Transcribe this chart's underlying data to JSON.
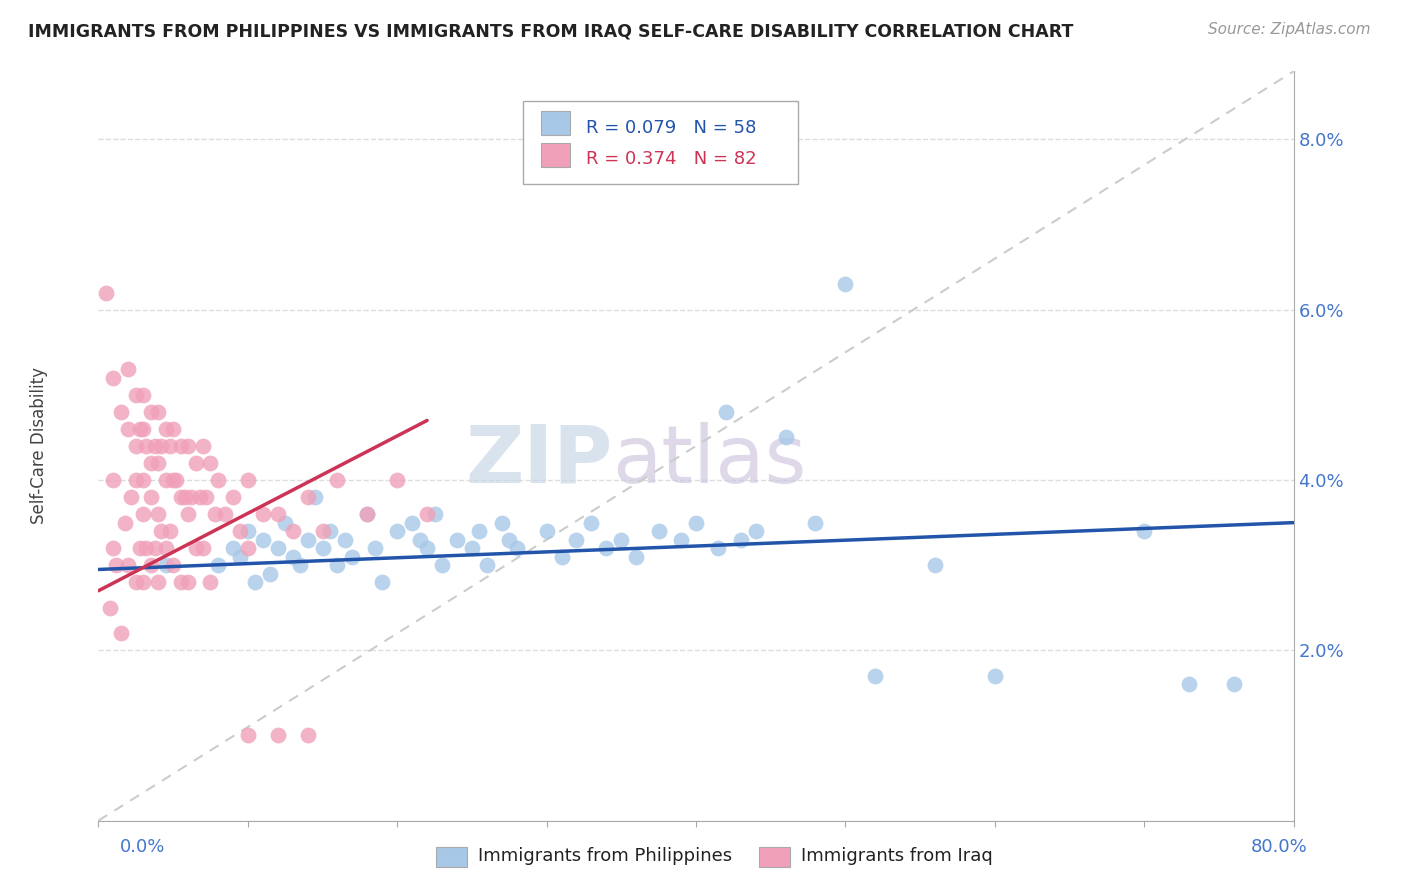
{
  "title": "IMMIGRANTS FROM PHILIPPINES VS IMMIGRANTS FROM IRAQ SELF-CARE DISABILITY CORRELATION CHART",
  "source": "Source: ZipAtlas.com",
  "ylabel": "Self-Care Disability",
  "xlim": [
    0.0,
    0.8
  ],
  "ylim": [
    0.0,
    0.088
  ],
  "color_philippines": "#a8c8e8",
  "color_iraq": "#f0a0b8",
  "line_color_philippines": "#2255aa",
  "line_color_iraq": "#cc3355",
  "watermark_zip": "ZIP",
  "watermark_atlas": "atlas",
  "phil_x": [
    0.045,
    0.08,
    0.09,
    0.095,
    0.1,
    0.105,
    0.11,
    0.115,
    0.12,
    0.125,
    0.13,
    0.135,
    0.14,
    0.145,
    0.15,
    0.155,
    0.16,
    0.165,
    0.17,
    0.18,
    0.185,
    0.19,
    0.2,
    0.21,
    0.215,
    0.22,
    0.225,
    0.23,
    0.24,
    0.25,
    0.255,
    0.26,
    0.27,
    0.275,
    0.28,
    0.3,
    0.31,
    0.32,
    0.33,
    0.34,
    0.35,
    0.36,
    0.375,
    0.39,
    0.4,
    0.415,
    0.42,
    0.43,
    0.44,
    0.46,
    0.48,
    0.5,
    0.52,
    0.56,
    0.6,
    0.7,
    0.73,
    0.76
  ],
  "phil_y": [
    0.03,
    0.03,
    0.032,
    0.031,
    0.034,
    0.028,
    0.033,
    0.029,
    0.032,
    0.035,
    0.031,
    0.03,
    0.033,
    0.038,
    0.032,
    0.034,
    0.03,
    0.033,
    0.031,
    0.036,
    0.032,
    0.028,
    0.034,
    0.035,
    0.033,
    0.032,
    0.036,
    0.03,
    0.033,
    0.032,
    0.034,
    0.03,
    0.035,
    0.033,
    0.032,
    0.034,
    0.031,
    0.033,
    0.035,
    0.032,
    0.033,
    0.031,
    0.034,
    0.033,
    0.035,
    0.032,
    0.048,
    0.033,
    0.034,
    0.045,
    0.035,
    0.063,
    0.017,
    0.03,
    0.017,
    0.034,
    0.016,
    0.016
  ],
  "iraq_x": [
    0.005,
    0.008,
    0.01,
    0.01,
    0.01,
    0.012,
    0.015,
    0.015,
    0.018,
    0.02,
    0.02,
    0.02,
    0.022,
    0.025,
    0.025,
    0.025,
    0.025,
    0.028,
    0.028,
    0.03,
    0.03,
    0.03,
    0.03,
    0.03,
    0.032,
    0.032,
    0.035,
    0.035,
    0.035,
    0.035,
    0.038,
    0.038,
    0.04,
    0.04,
    0.04,
    0.04,
    0.042,
    0.042,
    0.045,
    0.045,
    0.045,
    0.048,
    0.048,
    0.05,
    0.05,
    0.05,
    0.052,
    0.055,
    0.055,
    0.055,
    0.058,
    0.06,
    0.06,
    0.06,
    0.062,
    0.065,
    0.065,
    0.068,
    0.07,
    0.07,
    0.072,
    0.075,
    0.075,
    0.078,
    0.08,
    0.085,
    0.09,
    0.095,
    0.1,
    0.1,
    0.11,
    0.12,
    0.13,
    0.14,
    0.15,
    0.16,
    0.18,
    0.2,
    0.22,
    0.1,
    0.12,
    0.14
  ],
  "iraq_y": [
    0.062,
    0.025,
    0.052,
    0.04,
    0.032,
    0.03,
    0.048,
    0.022,
    0.035,
    0.053,
    0.046,
    0.03,
    0.038,
    0.05,
    0.044,
    0.04,
    0.028,
    0.046,
    0.032,
    0.05,
    0.046,
    0.04,
    0.036,
    0.028,
    0.044,
    0.032,
    0.048,
    0.042,
    0.038,
    0.03,
    0.044,
    0.032,
    0.048,
    0.042,
    0.036,
    0.028,
    0.044,
    0.034,
    0.046,
    0.04,
    0.032,
    0.044,
    0.034,
    0.046,
    0.04,
    0.03,
    0.04,
    0.044,
    0.038,
    0.028,
    0.038,
    0.044,
    0.036,
    0.028,
    0.038,
    0.042,
    0.032,
    0.038,
    0.044,
    0.032,
    0.038,
    0.042,
    0.028,
    0.036,
    0.04,
    0.036,
    0.038,
    0.034,
    0.04,
    0.032,
    0.036,
    0.036,
    0.034,
    0.038,
    0.034,
    0.04,
    0.036,
    0.04,
    0.036,
    0.01,
    0.01,
    0.01
  ]
}
